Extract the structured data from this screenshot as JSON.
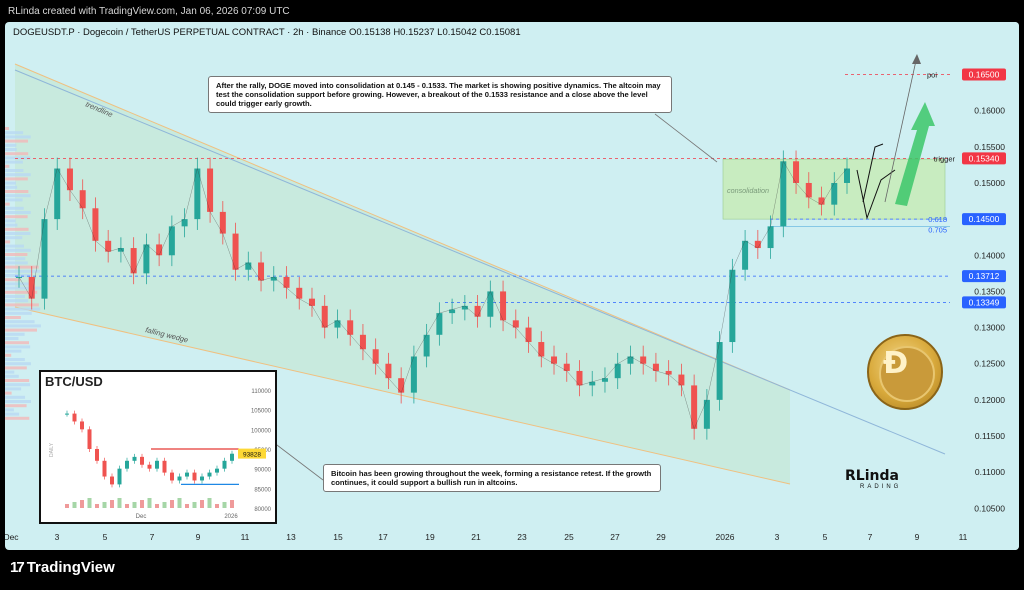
{
  "header": {
    "created_by": "RLinda created with TradingView.com, Jan 06, 2026 07:09 UTC"
  },
  "symbol": {
    "line": "DOGEUSDT.P · Dogecoin / TetherUS PERPETUAL CONTRACT · 2h · Binance  O0.15138  H0.15237  L0.15042  C0.15081"
  },
  "annotations": {
    "note_top": "After the rally, DOGE moved into consolidation at 0.145 - 0.1533. The market is showing positive dynamics. The altcoin may test the consolidation support before growing. However, a breakout of the 0.1533 resistance and a close above the level could trigger early growth.",
    "note_bottom": "Bitcoin has been growing throughout the week, forming a resistance retest. If the growth continues, it could support a bullish run in altcoins.",
    "trendline": "trendline",
    "falling_wedge": "falling wedge",
    "consolidation": "consolidation",
    "poi": "poi",
    "trigger": "trigger",
    "fib1": "0.618",
    "fib2": "0.705"
  },
  "price_tags": {
    "poi": "0.16500",
    "trigger": "0.15340",
    "support": "0.14500",
    "level1": "0.13712",
    "level2": "0.13349"
  },
  "brand": {
    "name": "RLinda",
    "sub": "RADING"
  },
  "footer": {
    "logo": "TradingView"
  },
  "inset": {
    "title": "BTC/USD",
    "ticks": [
      "110000",
      "105000",
      "100000",
      "95000",
      "90000",
      "85000",
      "80000"
    ],
    "price_tag": "93828",
    "x_labels": [
      "Dec",
      "2026"
    ],
    "side_label": "DAILY"
  },
  "colors": {
    "up": "#26a69a",
    "down": "#ef5350",
    "pane_bg": "#cfeff2",
    "tag_red": "#f23645",
    "tag_blue": "#2962ff",
    "zone_green": "#c8ecc0"
  },
  "chart_data": {
    "type": "line",
    "series": [
      {
        "values": [
          0.137,
          0.134,
          0.145,
          0.152,
          0.149,
          0.1465,
          0.142,
          0.1405,
          0.141,
          0.1375,
          0.1415,
          0.14,
          0.144,
          0.145,
          0.152,
          0.146,
          0.143,
          0.138,
          0.139,
          0.1365,
          0.137,
          0.1355,
          0.134,
          0.133,
          0.13,
          0.131,
          0.129,
          0.127,
          0.125,
          0.123,
          0.121,
          0.126,
          0.129,
          0.132,
          0.1325,
          0.133,
          0.1315,
          0.135,
          0.131,
          0.13,
          0.128,
          0.126,
          0.125,
          0.124,
          0.122,
          0.1225,
          0.123,
          0.125,
          0.126,
          0.125,
          0.124,
          0.1235,
          0.122,
          0.116,
          0.12,
          0.128,
          0.138,
          0.142,
          0.141,
          0.144,
          0.153,
          0.15,
          0.148,
          0.147,
          0.15,
          0.152
        ]
      }
    ],
    "y_ticks": [
      "0.16000",
      "0.15500",
      "0.15000",
      "0.14500",
      "0.14000",
      "0.13500",
      "0.13000",
      "0.12500",
      "0.12000",
      "0.11500",
      "0.11000",
      "0.10500"
    ],
    "x_ticks": [
      "Dec",
      "3",
      "5",
      "7",
      "9",
      "11",
      "13",
      "15",
      "17",
      "19",
      "21",
      "23",
      "25",
      "27",
      "29",
      "2026",
      "3",
      "5",
      "7",
      "9",
      "11"
    ],
    "ylim": [
      0.102,
      0.1695
    ],
    "levels": [
      0.165,
      0.1534,
      0.145,
      0.13712,
      0.13349
    ],
    "fib_levels": [
      0.618,
      0.705
    ],
    "consolidation_range": [
      0.145,
      0.1533
    ]
  }
}
